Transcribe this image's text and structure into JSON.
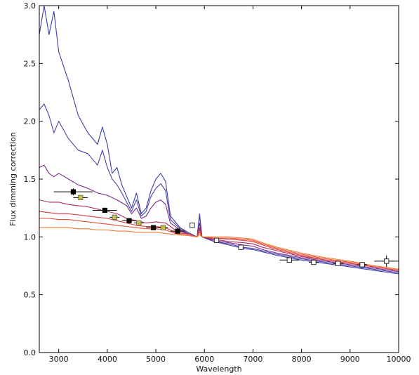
{
  "chart_data": {
    "type": "line",
    "title": "",
    "xlabel": "Wavelength",
    "ylabel": "Flux dimming correction",
    "xlim": [
      2600,
      10000
    ],
    "ylim": [
      0.0,
      3.0
    ],
    "xticks": [
      3000,
      4000,
      5000,
      6000,
      7000,
      8000,
      9000,
      10000
    ],
    "xtick_labels": [
      "3000",
      "4000",
      "5000",
      "6000",
      "7000",
      "8000",
      "9000",
      "10000"
    ],
    "yticks": [
      0.0,
      0.5,
      1.0,
      1.5,
      2.0,
      2.5,
      3.0
    ],
    "ytick_labels": [
      "0.0",
      "0.5",
      "1.0",
      "1.5",
      "2.0",
      "2.5",
      "3.0"
    ],
    "grid": false,
    "legend": "none",
    "series": [
      {
        "color": "#3a3da8",
        "points": [
          [
            2600,
            2.75
          ],
          [
            2700,
            3.0
          ],
          [
            2800,
            2.75
          ],
          [
            2900,
            2.95
          ],
          [
            3000,
            2.6
          ],
          [
            3200,
            2.35
          ],
          [
            3400,
            2.05
          ],
          [
            3600,
            1.9
          ],
          [
            3800,
            1.8
          ],
          [
            3900,
            1.95
          ],
          [
            4000,
            1.8
          ],
          [
            4100,
            1.55
          ],
          [
            4200,
            1.6
          ],
          [
            4300,
            1.45
          ],
          [
            4400,
            1.35
          ],
          [
            4500,
            1.25
          ],
          [
            4600,
            1.38
          ],
          [
            4700,
            1.2
          ],
          [
            4800,
            1.25
          ],
          [
            4900,
            1.4
          ],
          [
            5000,
            1.5
          ],
          [
            5100,
            1.55
          ],
          [
            5200,
            1.48
          ],
          [
            5300,
            1.18
          ],
          [
            5500,
            1.08
          ],
          [
            5700,
            1.03
          ],
          [
            5850,
            1.0
          ],
          [
            5900,
            1.2
          ],
          [
            5950,
            1.0
          ],
          [
            6200,
            0.96
          ],
          [
            6500,
            0.93
          ],
          [
            6800,
            0.9
          ],
          [
            7000,
            0.89
          ],
          [
            7200,
            0.87
          ],
          [
            7500,
            0.84
          ],
          [
            8000,
            0.8
          ],
          [
            8500,
            0.77
          ],
          [
            9000,
            0.74
          ],
          [
            9500,
            0.71
          ],
          [
            10000,
            0.68
          ]
        ]
      },
      {
        "color": "#4a44a8",
        "points": [
          [
            2600,
            2.1
          ],
          [
            2700,
            2.15
          ],
          [
            2800,
            2.05
          ],
          [
            2900,
            1.9
          ],
          [
            3000,
            2.0
          ],
          [
            3200,
            1.85
          ],
          [
            3400,
            1.75
          ],
          [
            3600,
            1.72
          ],
          [
            3800,
            1.62
          ],
          [
            3900,
            1.75
          ],
          [
            4000,
            1.6
          ],
          [
            4100,
            1.5
          ],
          [
            4200,
            1.45
          ],
          [
            4300,
            1.38
          ],
          [
            4400,
            1.3
          ],
          [
            4500,
            1.22
          ],
          [
            4600,
            1.32
          ],
          [
            4700,
            1.18
          ],
          [
            4800,
            1.22
          ],
          [
            4900,
            1.35
          ],
          [
            5000,
            1.42
          ],
          [
            5100,
            1.46
          ],
          [
            5200,
            1.4
          ],
          [
            5300,
            1.15
          ],
          [
            5500,
            1.07
          ],
          [
            5700,
            1.02
          ],
          [
            5850,
            1.0
          ],
          [
            5900,
            1.18
          ],
          [
            5950,
            1.0
          ],
          [
            6200,
            0.96
          ],
          [
            6500,
            0.94
          ],
          [
            6800,
            0.91
          ],
          [
            7000,
            0.9
          ],
          [
            7200,
            0.88
          ],
          [
            7500,
            0.85
          ],
          [
            8000,
            0.81
          ],
          [
            8500,
            0.78
          ],
          [
            9000,
            0.75
          ],
          [
            9500,
            0.72
          ],
          [
            10000,
            0.69
          ]
        ]
      },
      {
        "color": "#7a2a8a",
        "points": [
          [
            2600,
            1.6
          ],
          [
            2700,
            1.62
          ],
          [
            2800,
            1.55
          ],
          [
            2900,
            1.52
          ],
          [
            3000,
            1.55
          ],
          [
            3200,
            1.5
          ],
          [
            3400,
            1.45
          ],
          [
            3600,
            1.42
          ],
          [
            3800,
            1.38
          ],
          [
            4000,
            1.36
          ],
          [
            4200,
            1.32
          ],
          [
            4400,
            1.27
          ],
          [
            4500,
            1.2
          ],
          [
            4600,
            1.25
          ],
          [
            4700,
            1.16
          ],
          [
            4800,
            1.18
          ],
          [
            4900,
            1.25
          ],
          [
            5000,
            1.3
          ],
          [
            5100,
            1.32
          ],
          [
            5200,
            1.28
          ],
          [
            5300,
            1.12
          ],
          [
            5500,
            1.06
          ],
          [
            5700,
            1.02
          ],
          [
            5850,
            1.0
          ],
          [
            5900,
            1.12
          ],
          [
            5950,
            1.0
          ],
          [
            6200,
            0.97
          ],
          [
            6500,
            0.95
          ],
          [
            6800,
            0.93
          ],
          [
            7000,
            0.92
          ],
          [
            7200,
            0.89
          ],
          [
            7500,
            0.86
          ],
          [
            8000,
            0.82
          ],
          [
            8500,
            0.79
          ],
          [
            9000,
            0.76
          ],
          [
            9500,
            0.73
          ],
          [
            10000,
            0.7
          ]
        ]
      },
      {
        "color": "#b02a5a",
        "points": [
          [
            2600,
            1.32
          ],
          [
            2800,
            1.3
          ],
          [
            3000,
            1.3
          ],
          [
            3200,
            1.28
          ],
          [
            3400,
            1.27
          ],
          [
            3600,
            1.26
          ],
          [
            3800,
            1.24
          ],
          [
            4000,
            1.22
          ],
          [
            4200,
            1.2
          ],
          [
            4400,
            1.16
          ],
          [
            4600,
            1.14
          ],
          [
            4800,
            1.12
          ],
          [
            5000,
            1.13
          ],
          [
            5200,
            1.12
          ],
          [
            5400,
            1.06
          ],
          [
            5700,
            1.02
          ],
          [
            5850,
            1.0
          ],
          [
            5900,
            1.08
          ],
          [
            5950,
            1.0
          ],
          [
            6200,
            0.98
          ],
          [
            6500,
            0.96
          ],
          [
            6800,
            0.95
          ],
          [
            7000,
            0.94
          ],
          [
            7200,
            0.91
          ],
          [
            7500,
            0.88
          ],
          [
            8000,
            0.83
          ],
          [
            8500,
            0.8
          ],
          [
            9000,
            0.77
          ],
          [
            9500,
            0.74
          ],
          [
            10000,
            0.71
          ]
        ]
      },
      {
        "color": "#d83a3a",
        "points": [
          [
            2600,
            1.22
          ],
          [
            2800,
            1.21
          ],
          [
            3000,
            1.2
          ],
          [
            3200,
            1.2
          ],
          [
            3400,
            1.19
          ],
          [
            3600,
            1.18
          ],
          [
            3800,
            1.17
          ],
          [
            4000,
            1.16
          ],
          [
            4200,
            1.14
          ],
          [
            4400,
            1.12
          ],
          [
            4600,
            1.1
          ],
          [
            4800,
            1.09
          ],
          [
            5000,
            1.09
          ],
          [
            5200,
            1.08
          ],
          [
            5400,
            1.04
          ],
          [
            5700,
            1.02
          ],
          [
            5850,
            1.0
          ],
          [
            5900,
            1.06
          ],
          [
            5950,
            1.0
          ],
          [
            6200,
            0.99
          ],
          [
            6500,
            0.98
          ],
          [
            6800,
            0.97
          ],
          [
            7000,
            0.96
          ],
          [
            7200,
            0.93
          ],
          [
            7500,
            0.89
          ],
          [
            8000,
            0.84
          ],
          [
            8500,
            0.8
          ],
          [
            9000,
            0.77
          ],
          [
            9500,
            0.74
          ],
          [
            10000,
            0.71
          ]
        ]
      },
      {
        "color": "#e85030",
        "points": [
          [
            2600,
            1.16
          ],
          [
            2800,
            1.16
          ],
          [
            3000,
            1.15
          ],
          [
            3200,
            1.15
          ],
          [
            3400,
            1.14
          ],
          [
            3600,
            1.13
          ],
          [
            3800,
            1.12
          ],
          [
            4000,
            1.11
          ],
          [
            4200,
            1.1
          ],
          [
            4400,
            1.09
          ],
          [
            4600,
            1.08
          ],
          [
            4800,
            1.07
          ],
          [
            5000,
            1.07
          ],
          [
            5200,
            1.06
          ],
          [
            5400,
            1.03
          ],
          [
            5700,
            1.01
          ],
          [
            5850,
            1.0
          ],
          [
            5900,
            1.04
          ],
          [
            5950,
            1.0
          ],
          [
            6200,
            0.99
          ],
          [
            6500,
            0.99
          ],
          [
            6800,
            0.98
          ],
          [
            7000,
            0.97
          ],
          [
            7200,
            0.94
          ],
          [
            7500,
            0.9
          ],
          [
            8000,
            0.85
          ],
          [
            8500,
            0.81
          ],
          [
            9000,
            0.78
          ],
          [
            9500,
            0.75
          ],
          [
            10000,
            0.72
          ]
        ]
      },
      {
        "color": "#f07a30",
        "points": [
          [
            2600,
            1.08
          ],
          [
            2800,
            1.08
          ],
          [
            3000,
            1.08
          ],
          [
            3200,
            1.08
          ],
          [
            3400,
            1.07
          ],
          [
            3600,
            1.07
          ],
          [
            3800,
            1.06
          ],
          [
            4000,
            1.06
          ],
          [
            4200,
            1.05
          ],
          [
            4400,
            1.05
          ],
          [
            4600,
            1.04
          ],
          [
            4800,
            1.04
          ],
          [
            5000,
            1.04
          ],
          [
            5200,
            1.03
          ],
          [
            5400,
            1.02
          ],
          [
            5700,
            1.01
          ],
          [
            5850,
            1.0
          ],
          [
            5900,
            1.02
          ],
          [
            5950,
            1.0
          ],
          [
            6200,
            1.0
          ],
          [
            6500,
            1.0
          ],
          [
            6800,
            0.99
          ],
          [
            7000,
            0.98
          ],
          [
            7200,
            0.95
          ],
          [
            7500,
            0.91
          ],
          [
            8000,
            0.86
          ],
          [
            8500,
            0.82
          ],
          [
            9000,
            0.79
          ],
          [
            9500,
            0.75
          ],
          [
            10000,
            0.72
          ]
        ]
      }
    ],
    "black_points": [
      {
        "x": 3300,
        "y": 1.39,
        "xerr": 400,
        "yerr": 0.03
      },
      {
        "x": 3950,
        "y": 1.23,
        "xerr": 250,
        "yerr": 0.0
      },
      {
        "x": 4450,
        "y": 1.14,
        "xerr": 150,
        "yerr": 0.0
      },
      {
        "x": 4950,
        "y": 1.08,
        "xerr": 150,
        "yerr": 0.0
      },
      {
        "x": 5450,
        "y": 1.05,
        "xerr": 150,
        "yerr": 0.0
      }
    ],
    "yellow_points": [
      {
        "x": 3450,
        "y": 1.34,
        "xerr": 150,
        "yerr": 0.0
      },
      {
        "x": 4150,
        "y": 1.17,
        "xerr": 100,
        "yerr": 0.0
      },
      {
        "x": 4650,
        "y": 1.12,
        "xerr": 100,
        "yerr": 0.0
      },
      {
        "x": 5150,
        "y": 1.08,
        "xerr": 100,
        "yerr": 0.0
      }
    ],
    "open_points": [
      {
        "x": 5750,
        "y": 1.1,
        "xerr": 50,
        "yerr": 0.0
      },
      {
        "x": 6250,
        "y": 0.97,
        "xerr": 50,
        "yerr": 0.0
      },
      {
        "x": 6750,
        "y": 0.91,
        "xerr": 50,
        "yerr": 0.0
      },
      {
        "x": 7750,
        "y": 0.8,
        "xerr": 200,
        "yerr": 0.02
      },
      {
        "x": 8250,
        "y": 0.78,
        "xerr": 100,
        "yerr": 0.0
      },
      {
        "x": 8750,
        "y": 0.77,
        "xerr": 100,
        "yerr": 0.0
      },
      {
        "x": 9250,
        "y": 0.76,
        "xerr": 100,
        "yerr": 0.0
      },
      {
        "x": 9750,
        "y": 0.79,
        "xerr": 250,
        "yerr": 0.05
      }
    ]
  }
}
